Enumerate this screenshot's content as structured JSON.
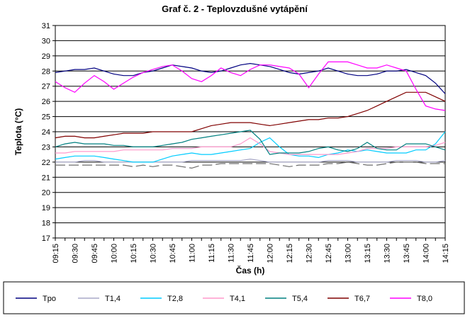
{
  "chart_data": {
    "type": "line",
    "title": "Graf č. 2 - Teplovzdušné vytápění",
    "xlabel": "Čas (h)",
    "ylabel": "Teplota (°C)",
    "ylim": [
      17,
      31
    ],
    "ytick_step": 1,
    "grid": "horizontal",
    "legend_position": "bottom",
    "categories": [
      "09:15",
      "09:30",
      "09:45",
      "10:00",
      "10:15",
      "10:30",
      "10:45",
      "11:00",
      "11:15",
      "11:30",
      "11:45",
      "12:00",
      "12:15",
      "12:30",
      "12:45",
      "13:00",
      "13:15",
      "13:30",
      "13:45",
      "14:00",
      "14:15"
    ],
    "x": [
      "09:15",
      "",
      "09:30",
      "",
      "09:45",
      "",
      "10:00",
      "",
      "10:15",
      "",
      "10:30",
      "",
      "10:45",
      "",
      "11:00",
      "",
      "11:15",
      "",
      "11:30",
      "",
      "11:45",
      "",
      "12:00",
      "",
      "12:15",
      "",
      "12:30",
      "",
      "12:45",
      "",
      "13:00",
      "",
      "13:15",
      "",
      "13:30",
      "",
      "13:45",
      "",
      "14:00",
      "",
      "14:15"
    ],
    "series": [
      {
        "name": "Tpo",
        "color": "#000080",
        "values": [
          27.9,
          28.0,
          28.1,
          28.1,
          28.2,
          28.0,
          27.8,
          27.7,
          27.7,
          27.9,
          28.0,
          28.2,
          28.4,
          28.3,
          28.2,
          28.0,
          27.9,
          28.0,
          28.2,
          28.4,
          28.5,
          28.4,
          28.3,
          28.1,
          27.9,
          27.8,
          27.9,
          28.0,
          28.2,
          28.0,
          27.8,
          27.7,
          27.7,
          27.8,
          28.0,
          28.0,
          28.1,
          27.9,
          27.7,
          27.2,
          26.5
        ]
      },
      {
        "name": "T1,4",
        "color": "#a8a8c8",
        "values": [
          22.0,
          22.0,
          22.0,
          22.1,
          22.1,
          22.0,
          22.0,
          22.0,
          22.0,
          22.0,
          22.0,
          22.0,
          22.0,
          22.0,
          22.1,
          22.1,
          22.1,
          22.1,
          22.1,
          22.1,
          22.2,
          22.1,
          22.0,
          22.0,
          22.0,
          22.0,
          22.0,
          22.0,
          22.1,
          22.1,
          22.1,
          22.0,
          22.0,
          22.0,
          22.0,
          22.1,
          22.1,
          22.1,
          22.0,
          22.0,
          22.1
        ]
      },
      {
        "name": "T2,8",
        "color": "#00ccff",
        "values": [
          22.2,
          22.3,
          22.4,
          22.4,
          22.4,
          22.3,
          22.2,
          22.1,
          22.0,
          22.0,
          22.0,
          22.2,
          22.4,
          22.5,
          22.6,
          22.5,
          22.5,
          22.6,
          22.7,
          22.8,
          22.9,
          23.3,
          23.6,
          23.0,
          22.5,
          22.4,
          22.4,
          22.3,
          22.5,
          22.6,
          22.8,
          22.7,
          22.8,
          22.7,
          22.6,
          22.6,
          22.6,
          22.8,
          22.8,
          23.2,
          24.0
        ]
      },
      {
        "name": "T4,1",
        "color": "#ff99cc",
        "values": [
          22.6,
          22.6,
          22.7,
          22.7,
          22.7,
          22.7,
          22.7,
          22.8,
          22.8,
          22.8,
          22.8,
          22.8,
          22.9,
          22.9,
          22.9,
          23.0,
          23.0,
          23.0,
          23.0,
          23.2,
          23.6,
          23.2,
          22.7,
          22.6,
          22.5,
          22.5,
          22.5,
          22.5,
          22.5,
          22.5,
          22.6,
          22.7,
          22.9,
          22.9,
          22.9,
          23.0,
          23.0,
          23.0,
          23.0,
          23.1,
          23.3
        ]
      },
      {
        "name": "T5,4",
        "color": "#008080",
        "values": [
          23.0,
          23.2,
          23.3,
          23.2,
          23.2,
          23.2,
          23.1,
          23.1,
          23.0,
          23.0,
          23.0,
          23.1,
          23.2,
          23.3,
          23.5,
          23.6,
          23.7,
          23.8,
          23.9,
          24.0,
          24.1,
          23.5,
          22.5,
          22.6,
          22.6,
          22.6,
          22.7,
          22.9,
          23.0,
          22.8,
          22.7,
          22.9,
          23.3,
          22.9,
          22.8,
          22.8,
          23.2,
          23.2,
          23.2,
          23.0,
          22.8
        ]
      },
      {
        "name": "T6,7",
        "color": "#800000",
        "values": [
          23.6,
          23.7,
          23.7,
          23.6,
          23.6,
          23.7,
          23.8,
          23.9,
          23.9,
          23.9,
          24.0,
          24.0,
          24.0,
          24.0,
          24.0,
          24.2,
          24.4,
          24.5,
          24.6,
          24.6,
          24.6,
          24.5,
          24.4,
          24.5,
          24.6,
          24.7,
          24.8,
          24.8,
          24.9,
          24.9,
          25.0,
          25.2,
          25.4,
          25.7,
          26.0,
          26.3,
          26.6,
          26.6,
          26.6,
          26.3,
          26.0
        ]
      },
      {
        "name": "T8,0",
        "color": "#ff00ff",
        "values": [
          27.3,
          26.9,
          26.6,
          27.2,
          27.7,
          27.3,
          26.8,
          27.2,
          27.6,
          27.9,
          28.1,
          28.3,
          28.4,
          28.0,
          27.5,
          27.3,
          27.7,
          28.2,
          27.9,
          27.7,
          28.1,
          28.4,
          28.4,
          28.3,
          28.2,
          27.8,
          26.9,
          27.8,
          28.6,
          28.6,
          28.6,
          28.4,
          28.2,
          28.2,
          28.4,
          28.2,
          28.0,
          26.8,
          25.7,
          25.5,
          25.4
        ]
      },
      {
        "name": "",
        "color": "#6d6d6d",
        "dashed": true,
        "values": [
          21.8,
          21.8,
          21.8,
          21.8,
          21.8,
          21.8,
          21.8,
          21.8,
          21.7,
          21.8,
          21.7,
          21.8,
          21.8,
          21.7,
          21.6,
          21.8,
          21.8,
          21.9,
          21.9,
          21.9,
          21.9,
          21.9,
          21.9,
          21.8,
          21.7,
          21.8,
          21.8,
          21.8,
          21.9,
          21.9,
          22.0,
          21.9,
          21.8,
          21.8,
          21.9,
          22.0,
          22.0,
          22.0,
          21.9,
          21.9,
          21.9
        ]
      }
    ]
  }
}
